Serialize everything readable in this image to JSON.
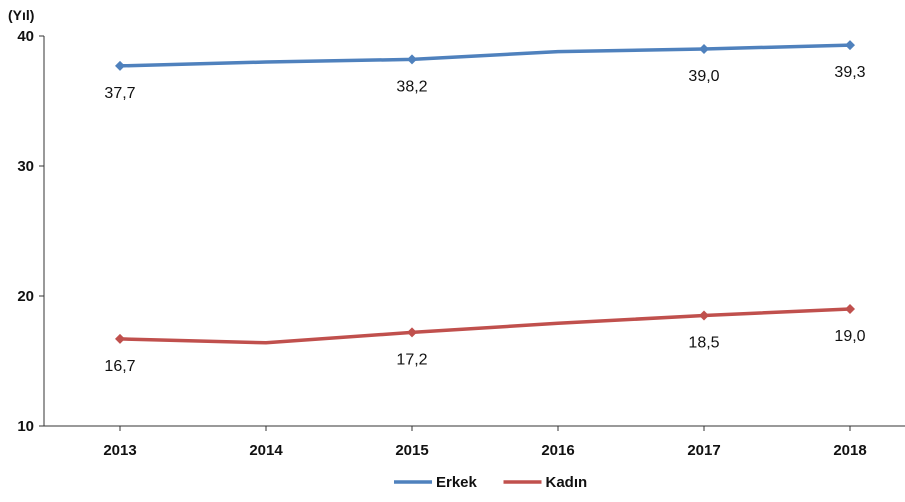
{
  "chart_data": {
    "type": "line",
    "unit_label": "(Yıl)",
    "categories": [
      "2013",
      "2014",
      "2015",
      "2016",
      "2017",
      "2018"
    ],
    "ylim": [
      10,
      40
    ],
    "yticks": [
      10,
      20,
      30,
      40
    ],
    "grid": false,
    "legend": "bottom-center",
    "series": [
      {
        "name": "Erkek",
        "color": "#4F81BD",
        "values": [
          37.7,
          38.0,
          38.2,
          38.8,
          39.0,
          39.3
        ],
        "marked_points": [
          0,
          2,
          4,
          5
        ],
        "labels": [
          "37,7",
          "",
          "38,2",
          "",
          "39,0",
          "39,3"
        ],
        "label_position": "below"
      },
      {
        "name": "Kadın",
        "color": "#C0504D",
        "values": [
          16.7,
          16.4,
          17.2,
          17.9,
          18.5,
          19.0
        ],
        "marked_points": [
          0,
          2,
          4,
          5
        ],
        "labels": [
          "16,7",
          "",
          "17,2",
          "",
          "18,5",
          "19,0"
        ],
        "label_position": "below"
      }
    ]
  }
}
